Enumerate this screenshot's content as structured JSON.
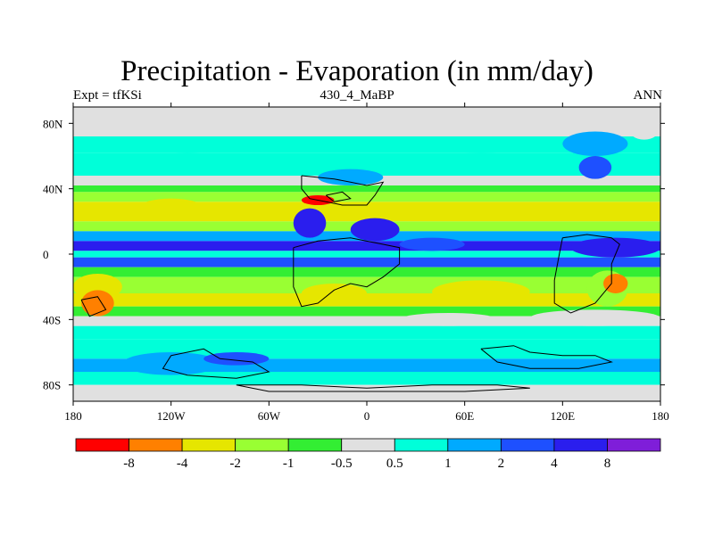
{
  "header": {
    "title": "Precipitation - Evaporation (in mm/day)",
    "left": "Expt = tfKSi",
    "center": "430_4_MaBP",
    "right": "ANN"
  },
  "chart_data": {
    "type": "heatmap",
    "title": "Precipitation - Evaporation (in mm/day)",
    "subtitle": "430_4_MaBP",
    "xlabel": "",
    "ylabel": "",
    "xlim": [
      -180,
      180
    ],
    "ylim": [
      -90,
      90
    ],
    "x_ticks": [
      {
        "value": -180,
        "label": "180"
      },
      {
        "value": -120,
        "label": "120W"
      },
      {
        "value": -60,
        "label": "60W"
      },
      {
        "value": 0,
        "label": "0"
      },
      {
        "value": 60,
        "label": "60E"
      },
      {
        "value": 120,
        "label": "120E"
      },
      {
        "value": 180,
        "label": "180"
      }
    ],
    "y_ticks": [
      {
        "value": 80,
        "label": "80N"
      },
      {
        "value": 40,
        "label": "40N"
      },
      {
        "value": 0,
        "label": "0"
      },
      {
        "value": -40,
        "label": "40S"
      },
      {
        "value": -80,
        "label": "80S"
      }
    ],
    "colorbar": {
      "boundaries": [
        "-8",
        "-4",
        "-2",
        "-1",
        "-0.5",
        "0.5",
        "1",
        "2",
        "4",
        "8"
      ],
      "boundary_label_index": [
        1,
        2,
        3,
        4,
        5,
        6,
        7,
        8,
        9,
        10
      ],
      "colors": [
        "#ff0000",
        "#ff8000",
        "#e6e600",
        "#99ff33",
        "#33ee33",
        "#e0e0e0",
        "#00ffd9",
        "#00aaff",
        "#1e50ff",
        "#2a1eee",
        "#7f1ed9"
      ]
    },
    "zonal_bands": [
      {
        "lat": [
          72,
          90
        ],
        "level": 5
      },
      {
        "lat": [
          62,
          72
        ],
        "level": 6
      },
      {
        "lat": [
          48,
          62
        ],
        "level": 6
      },
      {
        "lat": [
          42,
          48
        ],
        "level": 5
      },
      {
        "lat": [
          38,
          42
        ],
        "level": 4
      },
      {
        "lat": [
          32,
          38
        ],
        "level": 3
      },
      {
        "lat": [
          20,
          32
        ],
        "level": 2
      },
      {
        "lat": [
          14,
          20
        ],
        "level": 3
      },
      {
        "lat": [
          8,
          14
        ],
        "level": 7
      },
      {
        "lat": [
          2,
          8
        ],
        "level": 9
      },
      {
        "lat": [
          -2,
          2
        ],
        "level": 6
      },
      {
        "lat": [
          -8,
          -2
        ],
        "level": 8
      },
      {
        "lat": [
          -14,
          -8
        ],
        "level": 4
      },
      {
        "lat": [
          -24,
          -14
        ],
        "level": 3
      },
      {
        "lat": [
          -32,
          -24
        ],
        "level": 2
      },
      {
        "lat": [
          -38,
          -32
        ],
        "level": 4
      },
      {
        "lat": [
          -44,
          -38
        ],
        "level": 5
      },
      {
        "lat": [
          -52,
          -44
        ],
        "level": 6
      },
      {
        "lat": [
          -64,
          -52
        ],
        "level": 6
      },
      {
        "lat": [
          -72,
          -64
        ],
        "level": 7
      },
      {
        "lat": [
          -80,
          -72
        ],
        "level": 6
      },
      {
        "lat": [
          -90,
          -80
        ],
        "level": 5
      }
    ],
    "regional_features": [
      {
        "lon": [
          -140,
          -100
        ],
        "lat": [
          22,
          34
        ],
        "level": 2
      },
      {
        "lon": [
          -50,
          10
        ],
        "lat": [
          22,
          32
        ],
        "level": 2
      },
      {
        "lon": [
          -45,
          -25
        ],
        "lat": [
          10,
          28
        ],
        "level": 9
      },
      {
        "lon": [
          -10,
          20
        ],
        "lat": [
          8,
          22
        ],
        "level": 9
      },
      {
        "lon": [
          20,
          60
        ],
        "lat": [
          2,
          10
        ],
        "level": 8
      },
      {
        "lon": [
          125,
          180
        ],
        "lat": [
          -2,
          10
        ],
        "level": 9
      },
      {
        "lon": [
          135,
          160
        ],
        "lat": [
          -32,
          -10
        ],
        "level": 3
      },
      {
        "lon": [
          -180,
          -150
        ],
        "lat": [
          -28,
          -12
        ],
        "level": 2
      },
      {
        "lon": [
          -40,
          -20
        ],
        "lat": [
          30,
          36
        ],
        "level": 0
      },
      {
        "lon": [
          145,
          160
        ],
        "lat": [
          -24,
          -12
        ],
        "level": 1
      },
      {
        "lon": [
          -175,
          -155
        ],
        "lat": [
          -38,
          -22
        ],
        "level": 1
      },
      {
        "lon": [
          -40,
          0
        ],
        "lat": [
          -30,
          -18
        ],
        "level": 2
      },
      {
        "lon": [
          40,
          100
        ],
        "lat": [
          -30,
          -16
        ],
        "level": 2
      },
      {
        "lon": [
          20,
          80
        ],
        "lat": [
          -44,
          -36
        ],
        "level": 5
      },
      {
        "lon": [
          100,
          180
        ],
        "lat": [
          -44,
          -34
        ],
        "level": 5
      },
      {
        "lon": [
          -150,
          -90
        ],
        "lat": [
          -74,
          -60
        ],
        "level": 7
      },
      {
        "lon": [
          -100,
          -60
        ],
        "lat": [
          -68,
          -60
        ],
        "level": 8
      },
      {
        "lon": [
          120,
          160
        ],
        "lat": [
          60,
          75
        ],
        "level": 7
      },
      {
        "lon": [
          130,
          150
        ],
        "lat": [
          46,
          60
        ],
        "level": 8
      },
      {
        "lon": [
          160,
          180
        ],
        "lat": [
          70,
          85
        ],
        "level": 5
      },
      {
        "lon": [
          -30,
          10
        ],
        "lat": [
          42,
          52
        ],
        "level": 7
      },
      {
        "lon": [
          -140,
          -80
        ],
        "lat": [
          62,
          72
        ],
        "level": 6
      },
      {
        "lon": [
          30,
          110
        ],
        "lat": [
          62,
          72
        ],
        "level": 6
      }
    ],
    "continent_outlines": [
      [
        [
          -40,
          48
        ],
        [
          -20,
          46
        ],
        [
          -10,
          44
        ],
        [
          0,
          42
        ],
        [
          10,
          44
        ],
        [
          5,
          36
        ],
        [
          0,
          30
        ],
        [
          -15,
          30
        ],
        [
          -25,
          32
        ],
        [
          -35,
          34
        ],
        [
          -40,
          40
        ],
        [
          -40,
          48
        ]
      ],
      [
        [
          -45,
          4
        ],
        [
          -30,
          8
        ],
        [
          -10,
          10
        ],
        [
          10,
          6
        ],
        [
          20,
          4
        ],
        [
          20,
          -6
        ],
        [
          10,
          -14
        ],
        [
          0,
          -20
        ],
        [
          -10,
          -18
        ],
        [
          -20,
          -22
        ],
        [
          -30,
          -30
        ],
        [
          -40,
          -32
        ],
        [
          -45,
          -20
        ],
        [
          -45,
          4
        ]
      ],
      [
        [
          120,
          10
        ],
        [
          135,
          12
        ],
        [
          150,
          10
        ],
        [
          155,
          6
        ],
        [
          150,
          -6
        ],
        [
          150,
          -18
        ],
        [
          140,
          -30
        ],
        [
          125,
          -36
        ],
        [
          115,
          -30
        ],
        [
          115,
          -16
        ],
        [
          118,
          0
        ],
        [
          120,
          10
        ]
      ],
      [
        [
          -120,
          -62
        ],
        [
          -100,
          -58
        ],
        [
          -90,
          -64
        ],
        [
          -70,
          -66
        ],
        [
          -60,
          -72
        ],
        [
          -80,
          -76
        ],
        [
          -110,
          -74
        ],
        [
          -125,
          -70
        ],
        [
          -120,
          -62
        ]
      ],
      [
        [
          70,
          -58
        ],
        [
          90,
          -56
        ],
        [
          100,
          -60
        ],
        [
          120,
          -62
        ],
        [
          140,
          -62
        ],
        [
          150,
          -66
        ],
        [
          130,
          -70
        ],
        [
          100,
          -70
        ],
        [
          80,
          -66
        ],
        [
          70,
          -58
        ]
      ],
      [
        [
          -80,
          -80
        ],
        [
          -40,
          -80
        ],
        [
          0,
          -82
        ],
        [
          40,
          -80
        ],
        [
          80,
          -80
        ],
        [
          100,
          -82
        ],
        [
          60,
          -84
        ],
        [
          0,
          -84
        ],
        [
          -60,
          -84
        ],
        [
          -80,
          -80
        ]
      ],
      [
        [
          -175,
          -28
        ],
        [
          -165,
          -26
        ],
        [
          -160,
          -34
        ],
        [
          -170,
          -38
        ],
        [
          -175,
          -28
        ]
      ],
      [
        [
          -25,
          36
        ],
        [
          -15,
          38
        ],
        [
          -10,
          34
        ],
        [
          -20,
          32
        ],
        [
          -25,
          36
        ]
      ]
    ]
  }
}
